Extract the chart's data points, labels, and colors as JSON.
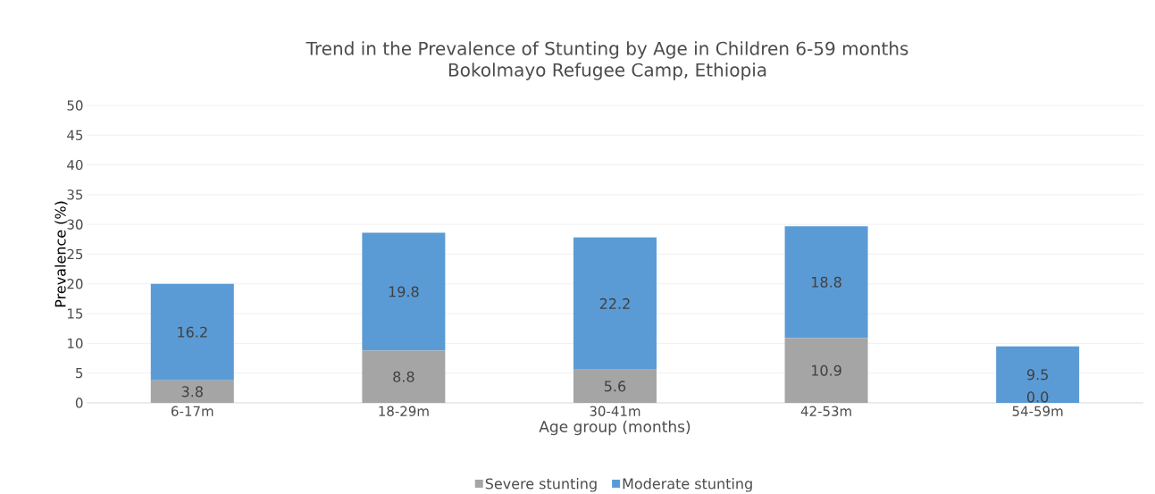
{
  "chart_data": {
    "type": "bar",
    "stacked": true,
    "title": "Trend in the Prevalence of Stunting by Age in Children 6-59 months",
    "subtitle": "Bokolmayo Refugee Camp, Ethiopia",
    "xlabel": "Age group (months)",
    "ylabel": "Prevalence (%)",
    "categories": [
      "6-17m",
      "18-29m",
      "30-41m",
      "42-53m",
      "54-59m"
    ],
    "series": [
      {
        "name": "Severe stunting",
        "color": "#a5a5a5",
        "values": [
          3.8,
          8.8,
          5.6,
          10.9,
          0.0
        ],
        "value_labels": [
          "3.8",
          "8.8",
          "5.6",
          "10.9",
          "0.0"
        ]
      },
      {
        "name": "Moderate stunting",
        "color": "#5b9bd5",
        "values": [
          16.2,
          19.8,
          22.2,
          18.8,
          9.5
        ],
        "value_labels": [
          "16.2",
          "19.8",
          "22.2",
          "18.8",
          "9.5"
        ]
      }
    ],
    "ylim": [
      0,
      50
    ],
    "yticks": [
      0,
      5,
      10,
      15,
      20,
      25,
      30,
      35,
      40,
      45,
      50
    ],
    "grid": "y",
    "legend": "bottom"
  }
}
